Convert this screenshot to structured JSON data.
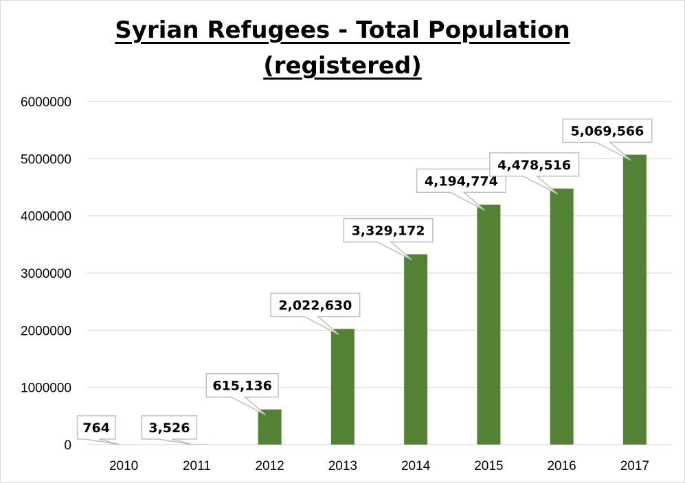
{
  "chart_data": {
    "type": "bar",
    "title_line1": "Syrian Refugees - Total Population",
    "title_line2": "(registered)",
    "categories": [
      "2010",
      "2011",
      "2012",
      "2013",
      "2014",
      "2015",
      "2016",
      "2017"
    ],
    "values": [
      764,
      3526,
      615136,
      2022630,
      3329172,
      4194774,
      4478516,
      5069566
    ],
    "data_labels": [
      "764",
      "3,526",
      "615,136",
      "2,022,630",
      "3,329,172",
      "4,194,774",
      "4,478,516",
      "5,069,566"
    ],
    "y_ticks": [
      "0",
      "1000000",
      "2000000",
      "3000000",
      "4000000",
      "5000000",
      "6000000"
    ],
    "ylim": [
      0,
      6000000
    ],
    "grid": true,
    "legend": "none",
    "bar_color": "#548235",
    "label_box_border": "#bfbfbf",
    "grid_color": "#d9d9d9"
  }
}
